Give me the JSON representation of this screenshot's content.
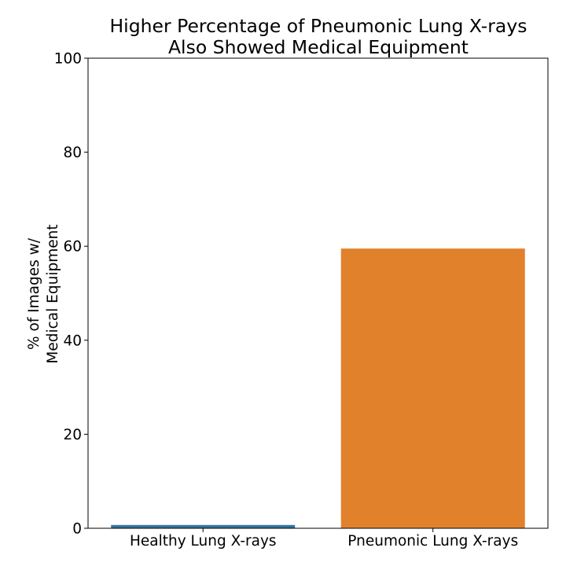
{
  "chart_data": {
    "type": "bar",
    "title_lines": [
      "Higher Percentage of Pneumonic Lung X-rays",
      "Also Showed Medical Equipment"
    ],
    "xlabel": "",
    "ylabel_lines": [
      "% of Images w/",
      "Medical Equipment"
    ],
    "categories": [
      "Healthy Lung X-rays",
      "Pneumonic Lung X-rays"
    ],
    "values": [
      0.7,
      59.5
    ],
    "colors": [
      "#3274a1",
      "#e1812c"
    ],
    "ylim": [
      0,
      100
    ],
    "yticks": [
      0,
      20,
      40,
      60,
      80,
      100
    ],
    "grid": false,
    "legend": "none"
  }
}
